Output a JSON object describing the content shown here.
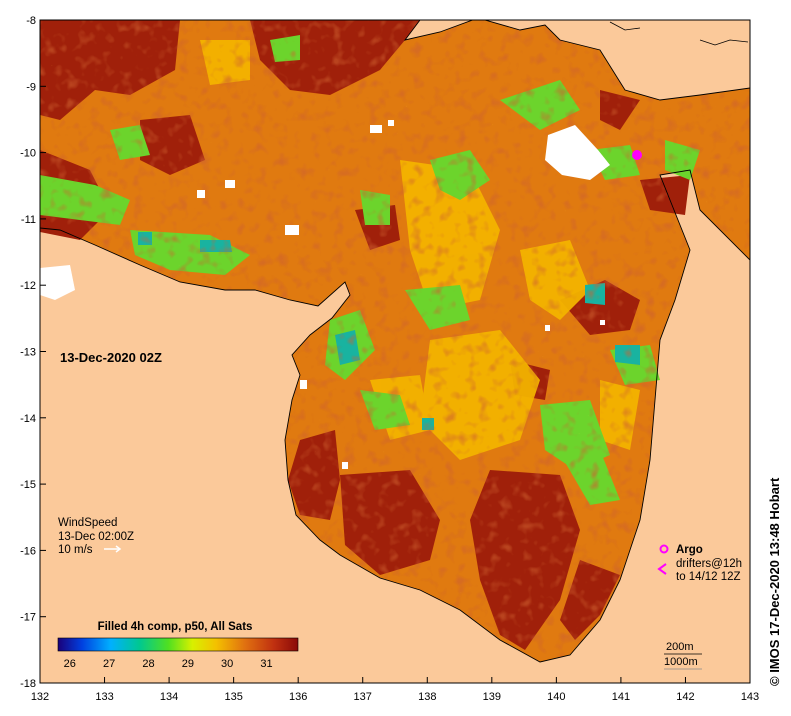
{
  "map": {
    "date_label": "13-Dec-2020 02Z",
    "x_ticks": [
      "132",
      "133",
      "134",
      "135",
      "136",
      "137",
      "138",
      "139",
      "140",
      "141",
      "142",
      "143"
    ],
    "y_ticks": [
      "-8",
      "-9",
      "-10",
      "-11",
      "-12",
      "-13",
      "-14",
      "-15",
      "-16",
      "-17",
      "-18"
    ],
    "x_range": [
      132,
      143
    ],
    "y_range": [
      -18,
      -8
    ],
    "colors": {
      "land": "#fbc99a",
      "sst_warm": "#a0200a",
      "sst_mid": "#e07a10",
      "sst_cool": "#f5b800",
      "sst_green": "#64d22a",
      "sst_teal": "#18b0a0"
    }
  },
  "wind": {
    "title": "WindSpeed",
    "time": "13-Dec 02:00Z",
    "scale_label": "10 m/s"
  },
  "legend": {
    "argo_label": "Argo",
    "drifters_label": "drifters@12h",
    "drifters_to": "to 14/12 12Z",
    "argo_color": "#ff00ff"
  },
  "contours": {
    "c1": "200m",
    "c2": "1000m"
  },
  "colorbar": {
    "title": "Filled 4h comp, p50, All Sats",
    "ticks": [
      "26",
      "27",
      "28",
      "29",
      "30",
      "31"
    ],
    "range": [
      25.7,
      31.8
    ]
  },
  "credit": "© IMOS 17-Dec-2020 13:48 Hobart"
}
